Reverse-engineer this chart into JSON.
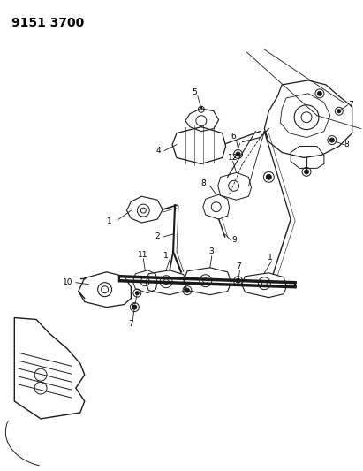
{
  "title_text": "9151 3700",
  "bg_color": "#ffffff",
  "line_color": "#1a1a1a",
  "fig_width": 4.11,
  "fig_height": 5.33,
  "dpi": 100,
  "title_fontsize": 10,
  "label_fontsize": 6.5
}
